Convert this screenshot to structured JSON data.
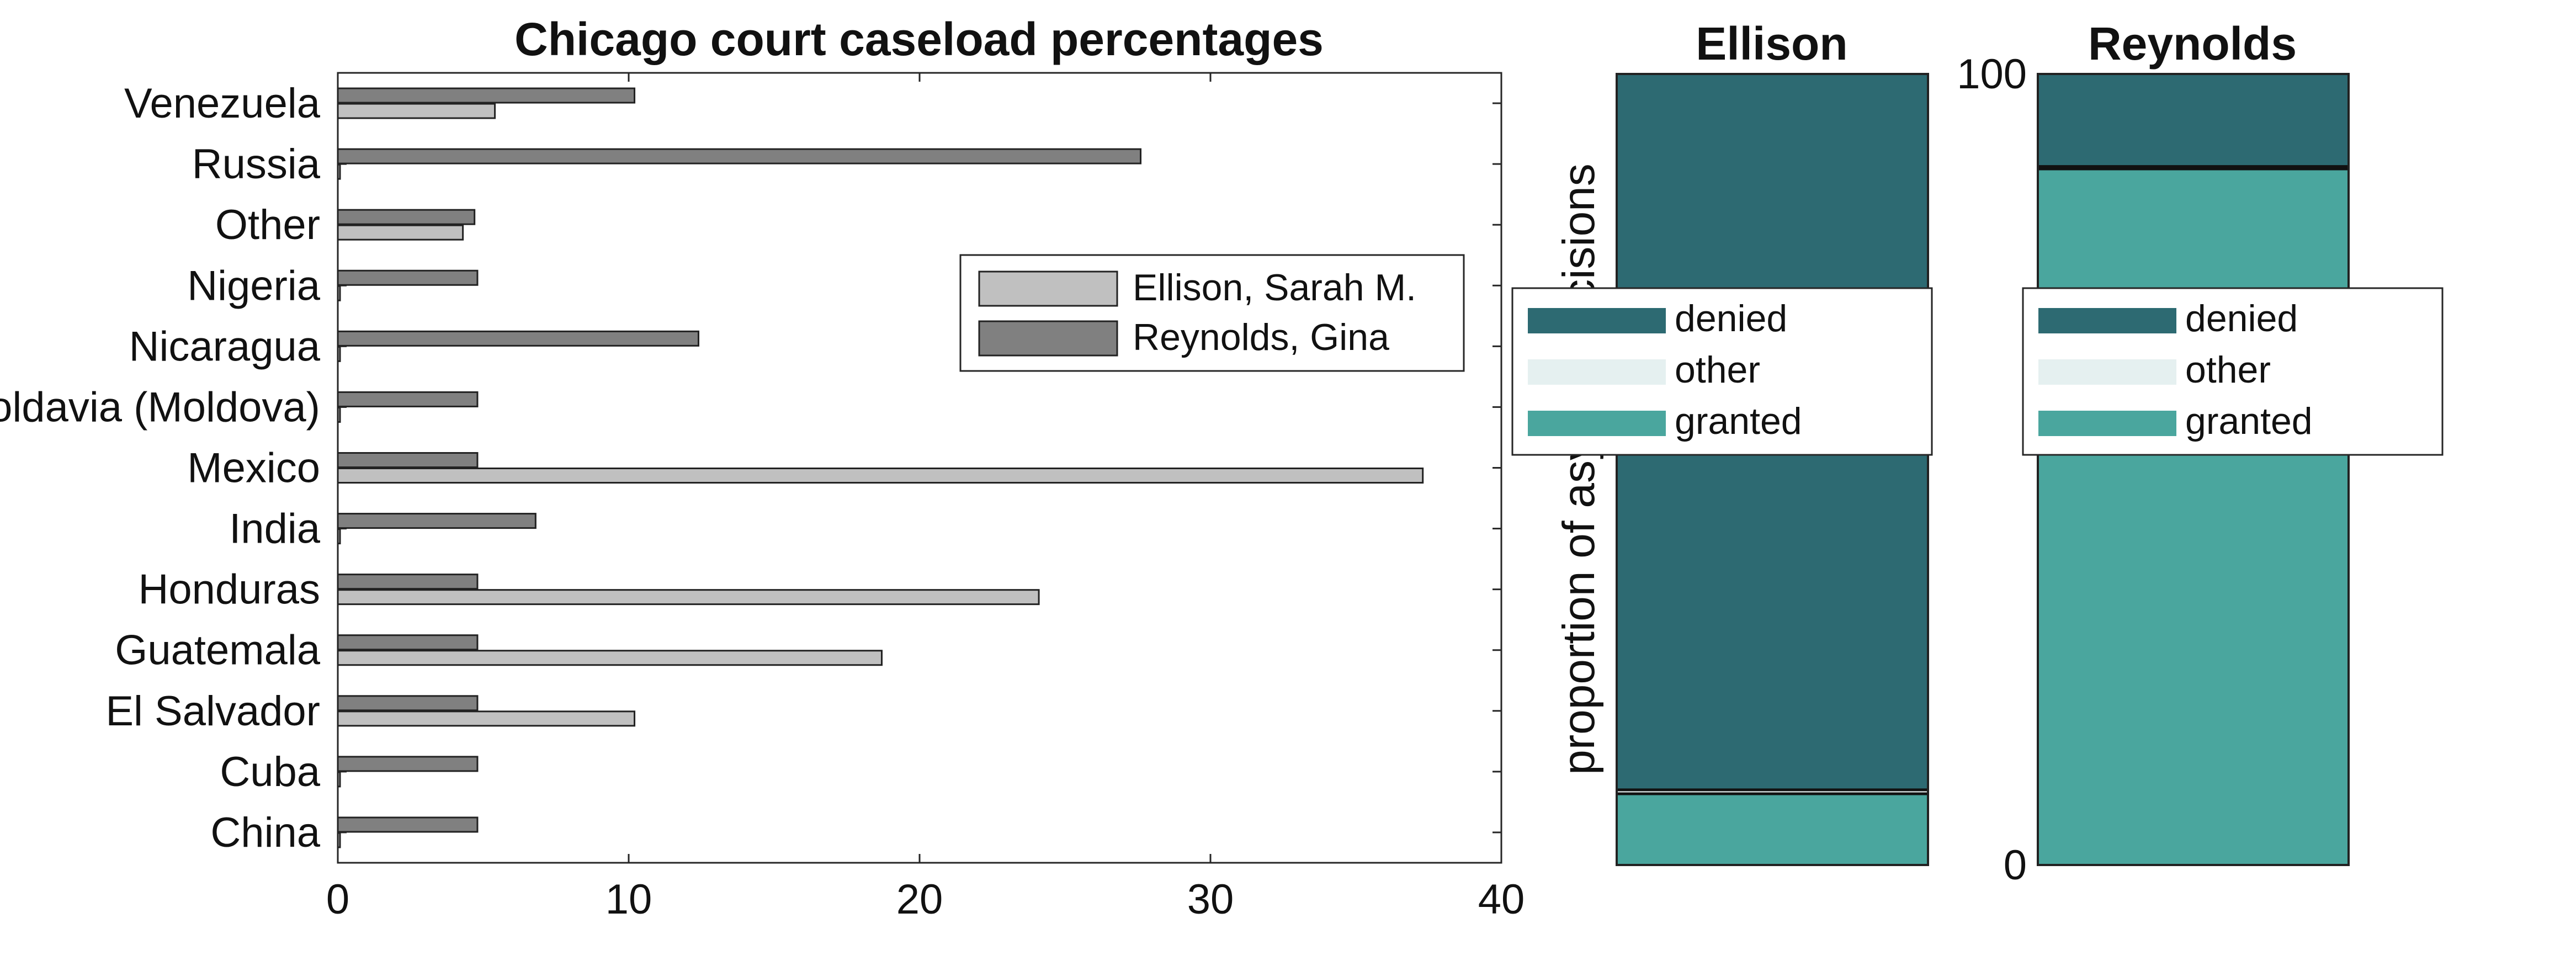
{
  "chart_data": [
    {
      "type": "bar",
      "orientation": "horizontal",
      "title": "Chicago court caseload percentages",
      "categories": [
        "Venezuela",
        "Russia",
        "Other",
        "Nigeria",
        "Nicaragua",
        "Moldavia (Moldova)",
        "Mexico",
        "India",
        "Honduras",
        "Guatemala",
        "El Salvador",
        "Cuba",
        "China"
      ],
      "series": [
        {
          "name": "Ellison, Sarah M.",
          "color": "#c0c0c0",
          "values": [
            5.4,
            0,
            4.3,
            0,
            0,
            0,
            37.3,
            0,
            24.1,
            18.7,
            10.2,
            0,
            0
          ]
        },
        {
          "name": "Reynolds, Gina",
          "color": "#808080",
          "values": [
            10.2,
            27.6,
            4.7,
            4.8,
            12.4,
            4.8,
            4.8,
            6.8,
            4.8,
            4.8,
            4.8,
            4.8,
            4.8
          ]
        }
      ],
      "xlim": [
        0,
        40
      ],
      "xticks": [
        0,
        10,
        20,
        30,
        40
      ],
      "legend_position": "right"
    },
    {
      "type": "bar",
      "orientation": "stacked-vertical",
      "title": "Ellison",
      "ylabel": "proportion of asylum decisions",
      "segments": [
        {
          "name": "granted",
          "value": 9,
          "color": "#4aa69e"
        },
        {
          "name": "other",
          "value": 0.5,
          "color": "#e5f0f0"
        },
        {
          "name": "denied",
          "value": 90.5,
          "color": "#2d6a72"
        }
      ],
      "legend": [
        "denied",
        "other",
        "granted"
      ]
    },
    {
      "type": "bar",
      "orientation": "stacked-vertical",
      "title": "Reynolds",
      "yticks": [
        0,
        100
      ],
      "ylim": [
        0,
        100
      ],
      "segments": [
        {
          "name": "granted",
          "value": 88,
          "color": "#4aa69e"
        },
        {
          "name": "other",
          "value": 0.3,
          "color": "#e5f0f0"
        },
        {
          "name": "denied",
          "value": 11.7,
          "color": "#2d6a72"
        }
      ],
      "legend": [
        "denied",
        "other",
        "granted"
      ]
    }
  ]
}
